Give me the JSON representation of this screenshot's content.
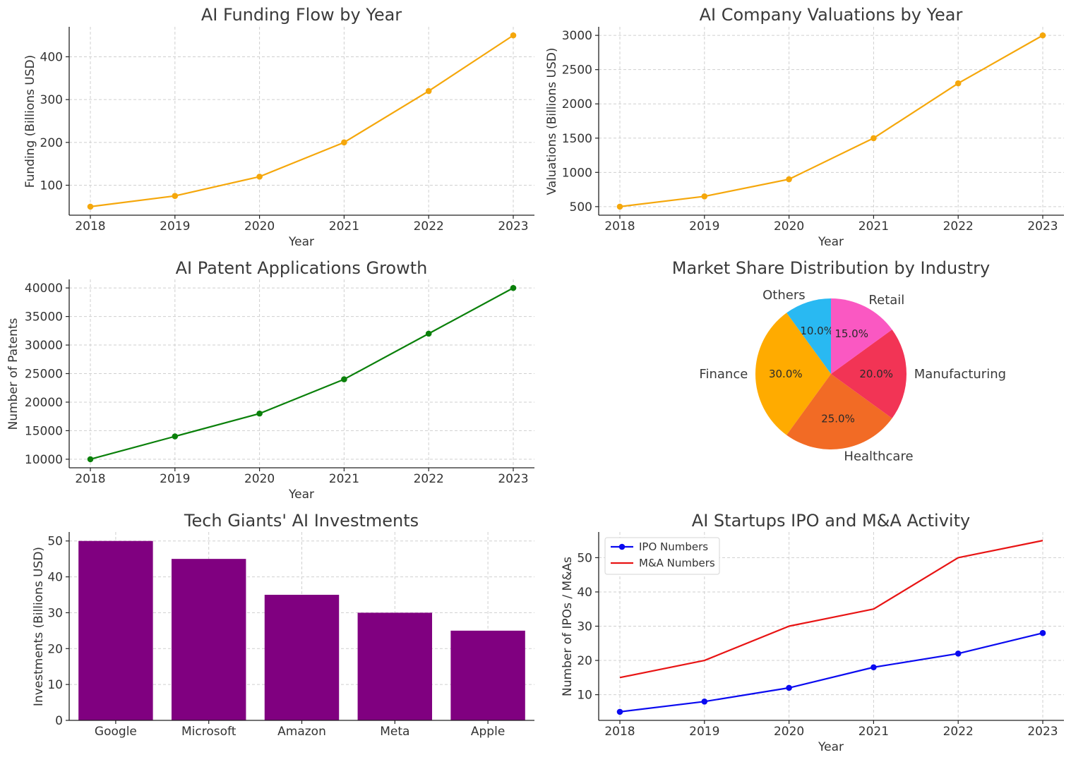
{
  "chart_data": [
    {
      "id": "funding",
      "type": "line",
      "title": "AI Funding Flow by Year",
      "xlabel": "Year",
      "ylabel": "Funding (Billions USD)",
      "x": [
        2018,
        2019,
        2020,
        2021,
        2022,
        2023
      ],
      "series": [
        {
          "name": "Funding",
          "values": [
            50,
            75,
            120,
            200,
            320,
            450
          ],
          "color": "#f5a70b",
          "marker": true
        }
      ],
      "ylim": [
        30,
        470
      ],
      "yticks": [
        100,
        200,
        300,
        400
      ],
      "grid": true
    },
    {
      "id": "valuations",
      "type": "line",
      "title": "AI Company Valuations by Year",
      "xlabel": "Year",
      "ylabel": "Valuations (Billions USD)",
      "x": [
        2018,
        2019,
        2020,
        2021,
        2022,
        2023
      ],
      "series": [
        {
          "name": "Valuations",
          "values": [
            500,
            650,
            900,
            1500,
            2300,
            3000
          ],
          "color": "#f5a70b",
          "marker": true
        }
      ],
      "ylim": [
        375,
        3125
      ],
      "yticks": [
        500,
        1000,
        1500,
        2000,
        2500,
        3000
      ],
      "grid": true
    },
    {
      "id": "patents",
      "type": "line",
      "title": "AI Patent Applications Growth",
      "xlabel": "Year",
      "ylabel": "Number of Patents",
      "x": [
        2018,
        2019,
        2020,
        2021,
        2022,
        2023
      ],
      "series": [
        {
          "name": "Patents",
          "values": [
            10000,
            14000,
            18000,
            24000,
            32000,
            40000
          ],
          "color": "#0a800a",
          "marker": true
        }
      ],
      "ylim": [
        8500,
        41500
      ],
      "yticks": [
        10000,
        15000,
        20000,
        25000,
        30000,
        35000,
        40000
      ],
      "grid": true
    },
    {
      "id": "market",
      "type": "pie",
      "title": "Market Share Distribution by Industry",
      "labels": [
        "Others",
        "Finance",
        "Healthcare",
        "Manufacturing",
        "Retail"
      ],
      "values": [
        10,
        30,
        25,
        20,
        15
      ],
      "pct_labels": [
        "10.0%",
        "30.0%",
        "25.0%",
        "20.0%",
        "15.0%"
      ],
      "colors": [
        "#29b9f2",
        "#ffab00",
        "#f26b25",
        "#f23455",
        "#fa58c2"
      ]
    },
    {
      "id": "giants",
      "type": "bar",
      "title": "Tech Giants' AI Investments",
      "xlabel": "",
      "ylabel": "Investments (Billions USD)",
      "categories": [
        "Google",
        "Microsoft",
        "Amazon",
        "Meta",
        "Apple"
      ],
      "values": [
        50,
        45,
        35,
        30,
        25
      ],
      "color": "#800080",
      "ylim": [
        0,
        52.5
      ],
      "yticks": [
        0,
        10,
        20,
        30,
        40,
        50
      ],
      "grid": true
    },
    {
      "id": "ipo",
      "type": "line",
      "title": "AI Startups IPO and M&A Activity",
      "xlabel": "Year",
      "ylabel": "Number of IPOs / M&As",
      "x": [
        2018,
        2019,
        2020,
        2021,
        2022,
        2023
      ],
      "series": [
        {
          "name": "IPO Numbers",
          "values": [
            5,
            8,
            12,
            18,
            22,
            28
          ],
          "color": "#0a0af0",
          "marker": true
        },
        {
          "name": "M&A Numbers",
          "values": [
            15,
            20,
            30,
            35,
            50,
            55
          ],
          "color": "#e81414",
          "marker": false
        }
      ],
      "ylim": [
        2.5,
        57.5
      ],
      "yticks": [
        10,
        20,
        30,
        40,
        50
      ],
      "legend": "top-left",
      "grid": true
    }
  ]
}
